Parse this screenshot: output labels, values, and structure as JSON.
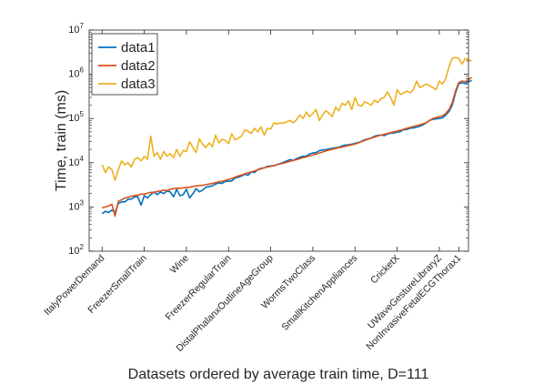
{
  "chart_data": {
    "type": "line",
    "title": "",
    "xlabel": "Datasets ordered by average train time, D=111",
    "ylabel": "Time, train (ms)",
    "yscale": "log",
    "ylim": [
      100,
      10000000
    ],
    "yticks": [
      {
        "value": 100,
        "base": "10",
        "exp": "2"
      },
      {
        "value": 1000,
        "base": "10",
        "exp": "3"
      },
      {
        "value": 10000,
        "base": "10",
        "exp": "4"
      },
      {
        "value": 100000,
        "base": "10",
        "exp": "5"
      },
      {
        "value": 1000000,
        "base": "10",
        "exp": "6"
      },
      {
        "value": 10000000,
        "base": "10",
        "exp": "7"
      }
    ],
    "xlim": [
      -3,
      114
    ],
    "xticks": [
      {
        "x": 1,
        "label": "ItalyPowerDemand"
      },
      {
        "x": 14,
        "label": "FreezerSmallTrain"
      },
      {
        "x": 27,
        "label": "Wine"
      },
      {
        "x": 40,
        "label": "FreezerRegularTrain"
      },
      {
        "x": 53,
        "label": "DistalPhalanxOutlineAgeGroup"
      },
      {
        "x": 66,
        "label": "WormsTwoClass"
      },
      {
        "x": 79,
        "label": "SmallKitchenAppliances"
      },
      {
        "x": 92,
        "label": "CricketX"
      },
      {
        "x": 105,
        "label": "UWaveGestureLibraryZ"
      },
      {
        "x": 111,
        "label": "NonInvasiveFetalECGThorax1"
      }
    ],
    "legend_position": "top-left",
    "series": [
      {
        "name": "data1",
        "color": "#0072BD",
        "y": [
          700,
          800,
          750,
          850,
          750,
          1200,
          1300,
          1300,
          1500,
          1500,
          1700,
          1700,
          1100,
          1800,
          1600,
          1900,
          2200,
          1900,
          2200,
          2000,
          2300,
          2200,
          1700,
          2500,
          1800,
          1900,
          2500,
          1600,
          2000,
          2600,
          2200,
          2400,
          2800,
          2900,
          3000,
          3300,
          3500,
          3400,
          3800,
          3800,
          3900,
          4500,
          4700,
          5000,
          5500,
          5200,
          6200,
          6000,
          7000,
          7500,
          7600,
          8300,
          8500,
          8500,
          9100,
          9600,
          10300,
          11000,
          11800,
          11300,
          12400,
          13300,
          14000,
          14200,
          15800,
          16600,
          17000,
          18700,
          19500,
          19800,
          20500,
          21200,
          21800,
          22300,
          24000,
          25200,
          25500,
          26200,
          27500,
          28600,
          30600,
          33200,
          34600,
          36400,
          39800,
          41500,
          42500,
          41000,
          44600,
          46900,
          47000,
          49200,
          50500,
          55900,
          56400,
          60300,
          61200,
          63700,
          67200,
          72000,
          80400,
          91100,
          95000,
          98500,
          100000,
          104000,
          120000,
          145000,
          200000,
          380000,
          610000,
          640000,
          620000,
          680000,
          720000
        ]
      },
      {
        "name": "data2",
        "color": "#D95319",
        "y": [
          950,
          1000,
          1050,
          1150,
          620,
          1350,
          1450,
          1600,
          1650,
          1750,
          1800,
          1850,
          1950,
          1950,
          2050,
          2150,
          2100,
          2250,
          2300,
          2400,
          2350,
          2500,
          2600,
          2650,
          2650,
          2700,
          2750,
          2800,
          2900,
          3000,
          3050,
          3100,
          3200,
          3300,
          3400,
          3550,
          3700,
          3800,
          4000,
          4200,
          4400,
          4700,
          5000,
          5300,
          5600,
          5900,
          6200,
          6500,
          6900,
          7300,
          7700,
          8000,
          8300,
          8700,
          9000,
          9400,
          9800,
          10300,
          10800,
          11300,
          11800,
          12400,
          13000,
          13600,
          14300,
          15000,
          15700,
          16600,
          17500,
          18500,
          19400,
          20200,
          21000,
          21800,
          22600,
          23500,
          24400,
          25400,
          26500,
          28000,
          30000,
          32000,
          34000,
          36000,
          38000,
          40000,
          42000,
          44000,
          46000,
          48000,
          50000,
          52000,
          54000,
          57000,
          60000,
          63000,
          66000,
          69000,
          72000,
          76000,
          80000,
          90000,
          100000,
          105000,
          110000,
          115000,
          130000,
          160000,
          230000,
          420000,
          650000,
          700000,
          680000,
          760000,
          850000
        ]
      },
      {
        "name": "data3",
        "color": "#EDB120",
        "y": [
          9000,
          6000,
          8000,
          7000,
          4000,
          7000,
          11000,
          9000,
          10000,
          8000,
          12000,
          13000,
          11000,
          14000,
          12000,
          40000,
          14000,
          17000,
          12000,
          18000,
          14000,
          16000,
          13000,
          20000,
          14000,
          19000,
          18000,
          30000,
          22000,
          17000,
          35000,
          26000,
          22000,
          28000,
          23000,
          42000,
          28000,
          34000,
          32000,
          27000,
          45000,
          33000,
          36000,
          40000,
          55000,
          52000,
          46000,
          60000,
          50000,
          65000,
          42000,
          60000,
          58000,
          80000,
          75000,
          80000,
          78000,
          85000,
          90000,
          80000,
          95000,
          120000,
          100000,
          140000,
          110000,
          130000,
          160000,
          90000,
          120000,
          150000,
          130000,
          110000,
          180000,
          150000,
          220000,
          200000,
          250000,
          160000,
          300000,
          200000,
          190000,
          240000,
          220000,
          200000,
          260000,
          230000,
          280000,
          300000,
          400000,
          300000,
          200000,
          450000,
          350000,
          380000,
          420000,
          380000,
          450000,
          700000,
          500000,
          550000,
          600000,
          550000,
          500000,
          450000,
          700000,
          600000,
          800000,
          1500000,
          2300000,
          2400000,
          2300000,
          1700000,
          2300000,
          2100000,
          2000000
        ]
      }
    ]
  }
}
